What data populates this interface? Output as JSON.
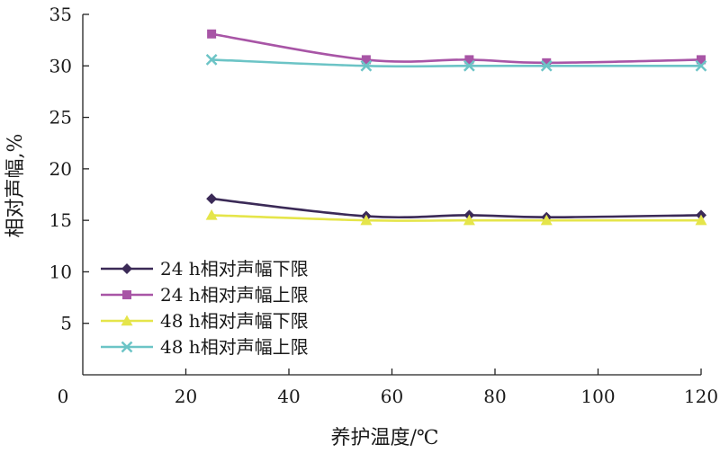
{
  "chart_data": {
    "type": "line",
    "title": "",
    "xlabel": "养护温度/℃",
    "ylabel": "相对声幅,%",
    "x": [
      25,
      55,
      75,
      90,
      120
    ],
    "xlim": [
      0,
      120
    ],
    "ylim": [
      0,
      35
    ],
    "xticks": [
      "0",
      "20",
      "40",
      "60",
      "80",
      "100",
      "120"
    ],
    "yticks": [
      "5",
      "10",
      "15",
      "20",
      "25",
      "30",
      "35"
    ],
    "grid": false,
    "legend_position": "lower-left",
    "series": [
      {
        "name": "24 h相对声幅下限",
        "values": [
          17.1,
          15.4,
          15.5,
          15.3,
          15.5
        ],
        "color": "#3b2a57",
        "marker": "diamond"
      },
      {
        "name": "24 h相对声幅上限",
        "values": [
          33.1,
          30.6,
          30.6,
          30.3,
          30.6
        ],
        "color": "#a855a6",
        "marker": "square"
      },
      {
        "name": "48 h相对声幅下限",
        "values": [
          15.5,
          15.0,
          15.0,
          15.0,
          15.0
        ],
        "color": "#e5e54a",
        "marker": "triangle"
      },
      {
        "name": "48 h相对声幅上限",
        "values": [
          30.6,
          30.0,
          30.0,
          30.0,
          30.0
        ],
        "color": "#6cc4c6",
        "marker": "x"
      }
    ]
  }
}
